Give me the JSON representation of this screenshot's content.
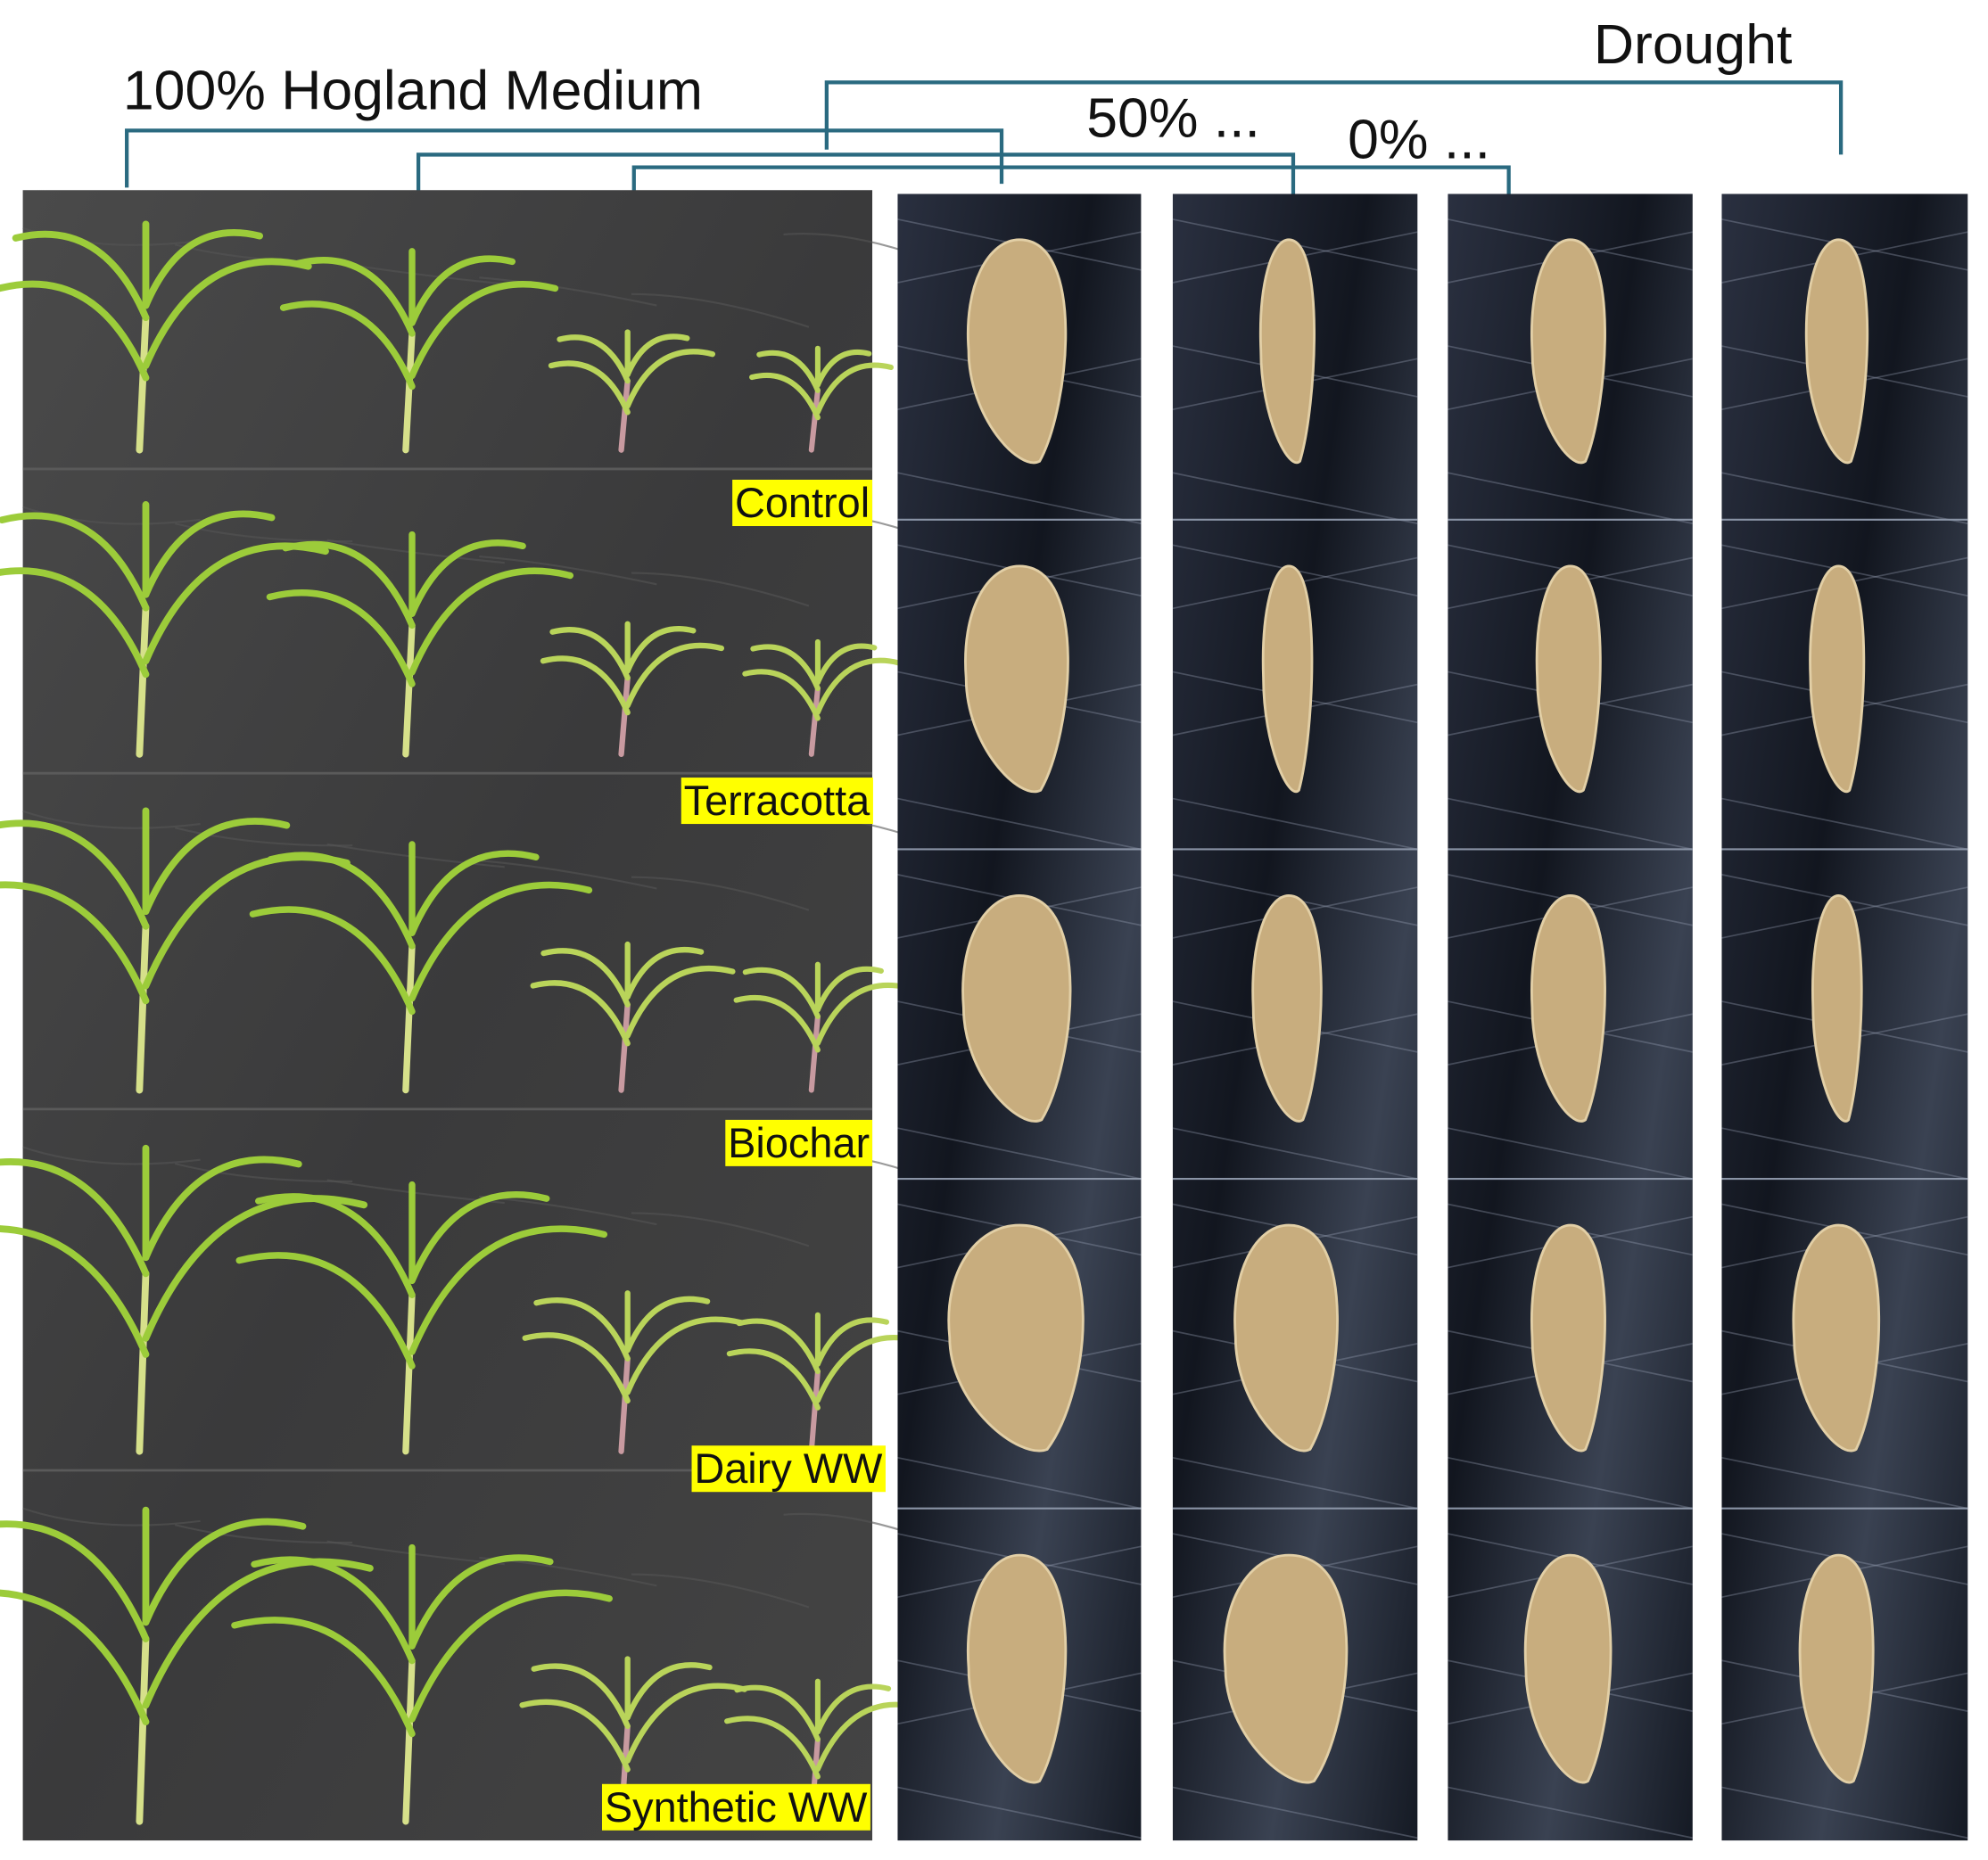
{
  "column_groups": [
    "100% Hogland Medium",
    "50% ...",
    "0% ...",
    "Drought"
  ],
  "treatments": [
    "Control",
    "Terracotta",
    "Biochar",
    "Dairy WW",
    "Synthetic WW"
  ]
}
